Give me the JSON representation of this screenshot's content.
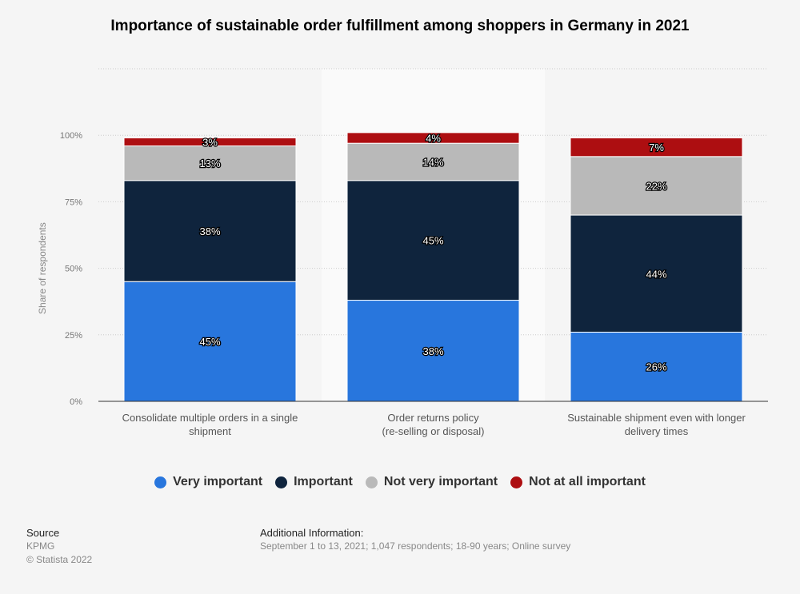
{
  "chart_data": {
    "type": "bar",
    "stacked": true,
    "title": "Importance of sustainable order fulfillment among shoppers in Germany in 2021",
    "ylabel": "Share of respondents",
    "xlabel": "",
    "ylim": [
      0,
      125
    ],
    "yticks": [
      "0%",
      "25%",
      "50%",
      "75%",
      "100%"
    ],
    "ytick_values": [
      0,
      25,
      50,
      75,
      100
    ],
    "grid": true,
    "legend_position": "bottom",
    "categories": [
      [
        "Consolidate multiple orders in a single",
        "shipment"
      ],
      [
        "Order returns policy",
        "(re-selling or disposal)"
      ],
      [
        "Sustainable shipment even with longer",
        "delivery times"
      ]
    ],
    "series": [
      {
        "name": "Very important",
        "color": "#2876dd",
        "values": [
          45,
          38,
          26
        ],
        "labels": [
          "45%",
          "38%",
          "26%"
        ]
      },
      {
        "name": "Important",
        "color": "#0f243d",
        "values": [
          38,
          45,
          44
        ],
        "labels": [
          "38%",
          "45%",
          "44%"
        ]
      },
      {
        "name": "Not very important",
        "color": "#b9b9b9",
        "values": [
          13,
          14,
          22
        ],
        "labels": [
          "13%",
          "14%",
          "22%"
        ]
      },
      {
        "name": "Not at all important",
        "color": "#ad0e11",
        "values": [
          3,
          4,
          7
        ],
        "labels": [
          "3%",
          "4%",
          "7%"
        ]
      }
    ]
  },
  "footer": {
    "source_heading": "Source",
    "source": "KPMG",
    "copyright": "© Statista 2022",
    "info_heading": "Additional Information:",
    "info": "September 1 to 13, 2021; 1,047 respondents; 18-90 years; Online survey"
  }
}
